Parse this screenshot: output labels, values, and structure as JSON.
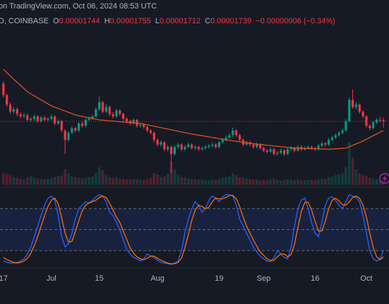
{
  "header": {
    "source": "on TradingView.com, Oct 06, 2024 08:53 UTC",
    "symbol": "D, COINBASE",
    "ohlc_labels": [
      "O",
      "H",
      "L",
      "C"
    ],
    "change": "−0.00000006 (−0.34%)"
  },
  "chart_data": [
    {
      "type": "candlestick",
      "up_color": "#089981",
      "down_color": "#f23645",
      "xlim": [
        -1,
        112.6
      ],
      "ylim": [
        1.475e-05,
        2.135e-05
      ],
      "y2lim": [
        0,
        400
      ],
      "xticks": [
        {
          "value": 0,
          "label": "17"
        },
        {
          "value": 14,
          "label": "Jul"
        },
        {
          "value": 28,
          "label": "15"
        },
        {
          "value": 45,
          "label": "Aug"
        },
        {
          "value": 63,
          "label": "19"
        },
        {
          "value": 76,
          "label": "Sep"
        },
        {
          "value": 91,
          "label": "16"
        },
        {
          "value": 106,
          "label": "Oct"
        }
      ],
      "open": [
        1.9e-05,
        1.85e-05,
        1.81e-05,
        1.78e-05,
        1.79e-05,
        1.77e-05,
        1.76e-05,
        1.765e-05,
        1.745e-05,
        1.75e-05,
        1.76e-05,
        1.74e-05,
        1.755e-05,
        1.745e-05,
        1.75e-05,
        1.76e-05,
        1.73e-05,
        1.74e-05,
        1.7e-05,
        1.66e-05,
        1.69e-05,
        1.71e-05,
        1.7e-05,
        1.73e-05,
        1.72e-05,
        1.745e-05,
        1.75e-05,
        1.76e-05,
        1.79e-05,
        1.82e-05,
        1.78e-05,
        1.8e-05,
        1.77e-05,
        1.76e-05,
        1.785e-05,
        1.77e-05,
        1.75e-05,
        1.74e-05,
        1.73e-05,
        1.745e-05,
        1.72e-05,
        1.725e-05,
        1.715e-05,
        1.7e-05,
        1.69e-05,
        1.66e-05,
        1.64e-05,
        1.65e-05,
        1.62e-05,
        1.63e-05,
        1.6e-05,
        1.63e-05,
        1.64e-05,
        1.62e-05,
        1.63e-05,
        1.64e-05,
        1.625e-05,
        1.63e-05,
        1.62e-05,
        1.625e-05,
        1.63e-05,
        1.635e-05,
        1.64e-05,
        1.63e-05,
        1.65e-05,
        1.66e-05,
        1.67e-05,
        1.68e-05,
        1.7e-05,
        1.68e-05,
        1.66e-05,
        1.64e-05,
        1.65e-05,
        1.64e-05,
        1.63e-05,
        1.64e-05,
        1.625e-05,
        1.615e-05,
        1.61e-05,
        1.62e-05,
        1.6e-05,
        1.605e-05,
        1.615e-05,
        1.6e-05,
        1.62e-05,
        1.625e-05,
        1.615e-05,
        1.63e-05,
        1.62e-05,
        1.625e-05,
        1.63e-05,
        1.625e-05,
        1.62e-05,
        1.635e-05,
        1.645e-05,
        1.64e-05,
        1.66e-05,
        1.67e-05,
        1.68e-05,
        1.69e-05,
        1.7e-05,
        1.74e-05,
        1.83e-05,
        1.8e-05,
        1.81e-05,
        1.78e-05,
        1.76e-05,
        1.72e-05,
        1.71e-05,
        1.735e-05,
        1.745e-05,
        1.744e-05
      ],
      "high": [
        1.91e-05,
        1.858e-05,
        1.82e-05,
        1.8e-05,
        1.798e-05,
        1.778e-05,
        1.775e-05,
        1.772e-05,
        1.758e-05,
        1.768e-05,
        1.766e-05,
        1.762e-05,
        1.763e-05,
        1.758e-05,
        1.77e-05,
        1.765e-05,
        1.748e-05,
        1.745e-05,
        1.706e-05,
        1.698e-05,
        1.718e-05,
        1.716e-05,
        1.736e-05,
        1.738e-05,
        1.752e-05,
        1.76e-05,
        1.768e-05,
        1.798e-05,
        1.845e-05,
        1.826e-05,
        1.815e-05,
        1.806e-05,
        1.778e-05,
        1.792e-05,
        1.79e-05,
        1.776e-05,
        1.756e-05,
        1.746e-05,
        1.752e-05,
        1.75e-05,
        1.733e-05,
        1.73e-05,
        1.72e-05,
        1.706e-05,
        1.696e-05,
        1.666e-05,
        1.658e-05,
        1.656e-05,
        1.638e-05,
        1.636e-05,
        1.638e-05,
        1.648e-05,
        1.646e-05,
        1.638e-05,
        1.648e-05,
        1.646e-05,
        1.638e-05,
        1.636e-05,
        1.632e-05,
        1.638e-05,
        1.642e-05,
        1.648e-05,
        1.646e-05,
        1.656e-05,
        1.668e-05,
        1.678e-05,
        1.688e-05,
        1.712e-05,
        1.706e-05,
        1.686e-05,
        1.666e-05,
        1.658e-05,
        1.656e-05,
        1.646e-05,
        1.648e-05,
        1.646e-05,
        1.631e-05,
        1.621e-05,
        1.628e-05,
        1.626e-05,
        1.613e-05,
        1.623e-05,
        1.621e-05,
        1.628e-05,
        1.633e-05,
        1.631e-05,
        1.638e-05,
        1.636e-05,
        1.633e-05,
        1.638e-05,
        1.636e-05,
        1.631e-05,
        1.643e-05,
        1.653e-05,
        1.651e-05,
        1.668e-05,
        1.678e-05,
        1.688e-05,
        1.698e-05,
        1.708e-05,
        1.748e-05,
        1.84e-05,
        1.875e-05,
        1.822e-05,
        1.816e-05,
        1.786e-05,
        1.766e-05,
        1.728e-05,
        1.742e-05,
        1.752e-05,
        1.758e-05,
        1.755e-05
      ],
      "low": [
        1.84e-05,
        1.8e-05,
        1.77e-05,
        1.772e-05,
        1.76e-05,
        1.75e-05,
        1.752e-05,
        1.738e-05,
        1.737e-05,
        1.742e-05,
        1.732e-05,
        1.734e-05,
        1.738e-05,
        1.738e-05,
        1.744e-05,
        1.722e-05,
        1.724e-05,
        1.692e-05,
        1.6e-05,
        1.652e-05,
        1.684e-05,
        1.692e-05,
        1.694e-05,
        1.712e-05,
        1.714e-05,
        1.738e-05,
        1.744e-05,
        1.754e-05,
        1.784e-05,
        1.772e-05,
        1.774e-05,
        1.762e-05,
        1.752e-05,
        1.754e-05,
        1.762e-05,
        1.742e-05,
        1.732e-05,
        1.722e-05,
        1.724e-05,
        1.712e-05,
        1.712e-05,
        1.707e-05,
        1.692e-05,
        1.682e-05,
        1.65e-05,
        1.632e-05,
        1.632e-05,
        1.612e-05,
        1.61e-05,
        1.52e-05,
        1.594e-05,
        1.622e-05,
        1.612e-05,
        1.614e-05,
        1.624e-05,
        1.618e-05,
        1.618e-05,
        1.612e-05,
        1.614e-05,
        1.618e-05,
        1.624e-05,
        1.628e-05,
        1.622e-05,
        1.624e-05,
        1.644e-05,
        1.654e-05,
        1.664e-05,
        1.674e-05,
        1.672e-05,
        1.652e-05,
        1.632e-05,
        1.634e-05,
        1.632e-05,
        1.622e-05,
        1.624e-05,
        1.618e-05,
        1.607e-05,
        1.602e-05,
        1.604e-05,
        1.592e-05,
        1.594e-05,
        1.599e-05,
        1.592e-05,
        1.594e-05,
        1.614e-05,
        1.607e-05,
        1.609e-05,
        1.612e-05,
        1.614e-05,
        1.619e-05,
        1.618e-05,
        1.612e-05,
        1.614e-05,
        1.629e-05,
        1.632e-05,
        1.634e-05,
        1.654e-05,
        1.664e-05,
        1.674e-05,
        1.684e-05,
        1.694e-05,
        1.734e-05,
        1.792e-05,
        1.79e-05,
        1.772e-05,
        1.752e-05,
        1.712e-05,
        1.7e-05,
        1.704e-05,
        1.728e-05,
        1.736e-05,
        1.712e-05
      ],
      "close": [
        1.85e-05,
        1.81e-05,
        1.78e-05,
        1.79e-05,
        1.77e-05,
        1.76e-05,
        1.765e-05,
        1.745e-05,
        1.75e-05,
        1.76e-05,
        1.74e-05,
        1.755e-05,
        1.745e-05,
        1.75e-05,
        1.76e-05,
        1.73e-05,
        1.74e-05,
        1.7e-05,
        1.66e-05,
        1.69e-05,
        1.71e-05,
        1.7e-05,
        1.73e-05,
        1.72e-05,
        1.745e-05,
        1.75e-05,
        1.76e-05,
        1.79e-05,
        1.82e-05,
        1.78e-05,
        1.8e-05,
        1.77e-05,
        1.76e-05,
        1.785e-05,
        1.77e-05,
        1.75e-05,
        1.74e-05,
        1.73e-05,
        1.745e-05,
        1.72e-05,
        1.725e-05,
        1.715e-05,
        1.7e-05,
        1.69e-05,
        1.66e-05,
        1.64e-05,
        1.65e-05,
        1.62e-05,
        1.63e-05,
        1.6e-05,
        1.63e-05,
        1.64e-05,
        1.62e-05,
        1.63e-05,
        1.64e-05,
        1.625e-05,
        1.63e-05,
        1.62e-05,
        1.625e-05,
        1.63e-05,
        1.635e-05,
        1.64e-05,
        1.63e-05,
        1.65e-05,
        1.66e-05,
        1.67e-05,
        1.68e-05,
        1.7e-05,
        1.68e-05,
        1.66e-05,
        1.64e-05,
        1.65e-05,
        1.64e-05,
        1.63e-05,
        1.64e-05,
        1.625e-05,
        1.615e-05,
        1.61e-05,
        1.62e-05,
        1.6e-05,
        1.605e-05,
        1.615e-05,
        1.6e-05,
        1.62e-05,
        1.625e-05,
        1.615e-05,
        1.63e-05,
        1.62e-05,
        1.625e-05,
        1.63e-05,
        1.625e-05,
        1.62e-05,
        1.635e-05,
        1.645e-05,
        1.64e-05,
        1.66e-05,
        1.67e-05,
        1.68e-05,
        1.69e-05,
        1.7e-05,
        1.74e-05,
        1.83e-05,
        1.8e-05,
        1.81e-05,
        1.78e-05,
        1.76e-05,
        1.72e-05,
        1.71e-05,
        1.735e-05,
        1.745e-05,
        1.744e-05,
        1.739e-05
      ],
      "ma": {
        "color": "#d9531e",
        "values": [
          1.96e-05,
          1.946e-05,
          1.932e-05,
          1.918e-05,
          1.905e-05,
          1.892e-05,
          1.878e-05,
          1.865e-05,
          1.856e-05,
          1.847e-05,
          1.839e-05,
          1.83e-05,
          1.822e-05,
          1.813e-05,
          1.805e-05,
          1.799e-05,
          1.794e-05,
          1.788e-05,
          1.783e-05,
          1.777e-05,
          1.772e-05,
          1.766e-05,
          1.763e-05,
          1.76e-05,
          1.757e-05,
          1.754e-05,
          1.751e-05,
          1.748e-05,
          1.745e-05,
          1.744e-05,
          1.742e-05,
          1.741e-05,
          1.74e-05,
          1.739e-05,
          1.737e-05,
          1.736e-05,
          1.735e-05,
          1.734e-05,
          1.733e-05,
          1.731e-05,
          1.73e-05,
          1.727e-05,
          1.724e-05,
          1.721e-05,
          1.718e-05,
          1.715e-05,
          1.712e-05,
          1.709e-05,
          1.706e-05,
          1.703e-05,
          1.7e-05,
          1.697e-05,
          1.694e-05,
          1.691e-05,
          1.688e-05,
          1.685e-05,
          1.683e-05,
          1.68e-05,
          1.678e-05,
          1.675e-05,
          1.673e-05,
          1.67e-05,
          1.668e-05,
          1.665e-05,
          1.663e-05,
          1.66e-05,
          1.658e-05,
          1.656e-05,
          1.654e-05,
          1.652e-05,
          1.65e-05,
          1.648e-05,
          1.646e-05,
          1.644e-05,
          1.642e-05,
          1.64e-05,
          1.639e-05,
          1.637e-05,
          1.636e-05,
          1.634e-05,
          1.633e-05,
          1.631e-05,
          1.63e-05,
          1.628e-05,
          1.627e-05,
          1.625e-05,
          1.625e-05,
          1.624e-05,
          1.624e-05,
          1.623e-05,
          1.623e-05,
          1.622e-05,
          1.622e-05,
          1.621e-05,
          1.621e-05,
          1.62e-05,
          1.621e-05,
          1.622e-05,
          1.623e-05,
          1.624e-05,
          1.625e-05,
          1.631e-05,
          1.637e-05,
          1.643e-05,
          1.649e-05,
          1.655e-05,
          1.663e-05,
          1.67e-05,
          1.678e-05,
          1.685e-05,
          1.693e-05,
          1.7e-05
        ]
      },
      "volume": {
        "axis": "y2",
        "values": [
          30,
          28,
          25,
          20,
          18,
          15,
          14,
          20,
          22,
          18,
          16,
          15,
          14,
          16,
          18,
          20,
          22,
          24,
          40,
          30,
          22,
          20,
          18,
          16,
          18,
          20,
          22,
          30,
          45,
          38,
          25,
          20,
          18,
          20,
          16,
          15,
          14,
          13,
          15,
          14,
          13,
          12,
          14,
          18,
          30,
          26,
          20,
          22,
          28,
          60,
          40,
          25,
          20,
          18,
          16,
          15,
          14,
          13,
          14,
          12,
          12,
          14,
          13,
          15,
          18,
          20,
          22,
          30,
          25,
          20,
          18,
          16,
          14,
          13,
          14,
          12,
          13,
          12,
          14,
          16,
          12,
          11,
          12,
          14,
          13,
          12,
          14,
          12,
          11,
          12,
          13,
          12,
          14,
          16,
          15,
          20,
          22,
          25,
          28,
          30,
          45,
          110,
          70,
          40,
          30,
          25,
          22,
          18,
          16,
          14,
          12,
          10
        ]
      }
    },
    {
      "type": "line",
      "ylim": [
        0,
        100
      ],
      "hlines": [
        80,
        50,
        20
      ],
      "band_color": "#2962ff",
      "series": [
        {
          "color": "#2962ff",
          "values": [
            5,
            3,
            2,
            2,
            3,
            5,
            8,
            15,
            25,
            40,
            55,
            70,
            85,
            95,
            98,
            92,
            70,
            40,
            25,
            30,
            45,
            65,
            80,
            85,
            90,
            88,
            92,
            97,
            100,
            98,
            90,
            75,
            70,
            60,
            50,
            35,
            22,
            15,
            10,
            8,
            5,
            8,
            15,
            12,
            10,
            6,
            3,
            2,
            1,
            0,
            2,
            5,
            20,
            45,
            65,
            80,
            90,
            85,
            75,
            80,
            92,
            98,
            95,
            90,
            97,
            100,
            100,
            98,
            85,
            65,
            55,
            45,
            35,
            25,
            18,
            12,
            8,
            5,
            4,
            10,
            20,
            15,
            10,
            8,
            25,
            55,
            80,
            92,
            95,
            80,
            60,
            45,
            40,
            60,
            85,
            95,
            97,
            92,
            85,
            80,
            90,
            100,
            98,
            96,
            90,
            70,
            45,
            20,
            8,
            5,
            8,
            20
          ]
        },
        {
          "color": "#ff6d00",
          "values": [
            10,
            7,
            5,
            3,
            2,
            3,
            5,
            9,
            16,
            27,
            40,
            55,
            70,
            83,
            92,
            95,
            87,
            67,
            45,
            32,
            33,
            47,
            63,
            77,
            85,
            88,
            90,
            92,
            96,
            98,
            96,
            88,
            78,
            68,
            60,
            48,
            36,
            24,
            16,
            11,
            8,
            7,
            9,
            12,
            12,
            9,
            6,
            4,
            2,
            1,
            1,
            3,
            9,
            24,
            43,
            63,
            78,
            85,
            83,
            80,
            82,
            90,
            95,
            94,
            94,
            96,
            99,
            99,
            94,
            83,
            68,
            55,
            45,
            35,
            26,
            18,
            13,
            8,
            6,
            6,
            11,
            15,
            15,
            11,
            14,
            29,
            53,
            76,
            89,
            89,
            78,
            62,
            48,
            48,
            62,
            80,
            92,
            95,
            91,
            86,
            85,
            90,
            96,
            98,
            95,
            85,
            68,
            45,
            24,
            11,
            7,
            11
          ]
        }
      ]
    }
  ]
}
